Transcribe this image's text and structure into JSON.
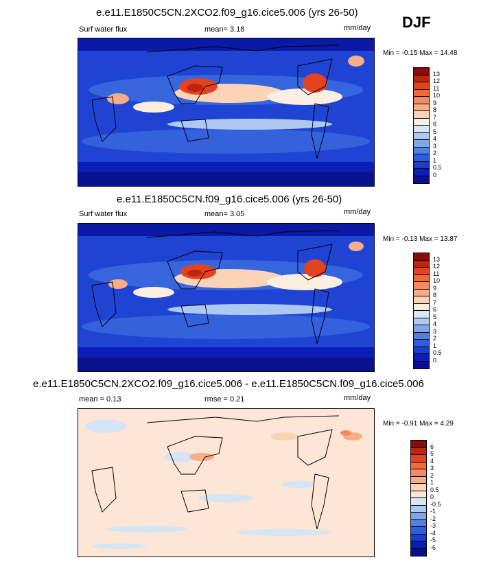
{
  "season": "DJF",
  "panels": [
    {
      "title": "e.e11.E1850C5CN.2XCO2.f09_g16.cice5.006 (yrs 26-50)",
      "variable": "Surf water flux",
      "stat1": "mean=  3.18",
      "stat2": "",
      "units": "mm/day",
      "minmax": "Min =  -0.15 Max =  14.48",
      "colorbar_labels": [
        "13",
        "12",
        "11",
        "10",
        "9",
        "8",
        "7",
        "6",
        "5",
        "4",
        "3",
        "2",
        "1",
        "0.5",
        "0"
      ],
      "colorbar_colors": [
        "#8b0a0a",
        "#c1230f",
        "#e4431f",
        "#f06a3a",
        "#f38b5f",
        "#f6ad88",
        "#fbd3b6",
        "#fdeee2",
        "#d9e6f7",
        "#adc9f1",
        "#7ea7ea",
        "#5080e2",
        "#2d5edb",
        "#1a3ecf",
        "#0b1fb8",
        "#0a0f8f"
      ]
    },
    {
      "title": "e.e11.E1850C5CN.f09_g16.cice5.006 (yrs 26-50)",
      "variable": "Surf water flux",
      "stat1": "mean=  3.05",
      "stat2": "",
      "units": "mm/day",
      "minmax": "Min =  -0.13 Max =  13.87",
      "colorbar_labels": [
        "13",
        "12",
        "11",
        "10",
        "9",
        "8",
        "7",
        "6",
        "5",
        "4",
        "3",
        "2",
        "1",
        "0.5",
        "0"
      ],
      "colorbar_colors": [
        "#8b0a0a",
        "#c1230f",
        "#e4431f",
        "#f06a3a",
        "#f38b5f",
        "#f6ad88",
        "#fbd3b6",
        "#fdeee2",
        "#d9e6f7",
        "#adc9f1",
        "#7ea7ea",
        "#5080e2",
        "#2d5edb",
        "#1a3ecf",
        "#0b1fb8",
        "#0a0f8f"
      ]
    },
    {
      "title": "e.e11.E1850C5CN.2XCO2.f09_g16.cice5.006 - e.e11.E1850C5CN.f09_g16.cice5.006",
      "variable": "",
      "stat1": "mean =  0.13",
      "stat2": "rmse =  0.21",
      "units": "mm/day",
      "minmax": "Min =  -0.91 Max =  4.29",
      "colorbar_labels": [
        "6",
        "5",
        "4",
        "3",
        "2",
        "1",
        "0.5",
        "0",
        "-0.5",
        "-1",
        "-2",
        "-3",
        "-4",
        "-5",
        "-6"
      ],
      "colorbar_colors": [
        "#8b0a0a",
        "#c1230f",
        "#e4431f",
        "#f06a3a",
        "#f38b5f",
        "#f6ad88",
        "#fbd3b6",
        "#fde6d6",
        "#d6e5f6",
        "#adc9f1",
        "#7ea7ea",
        "#5080e2",
        "#2d5edb",
        "#1a3ecf",
        "#0b1fb8",
        "#0a0f8f"
      ]
    }
  ]
}
